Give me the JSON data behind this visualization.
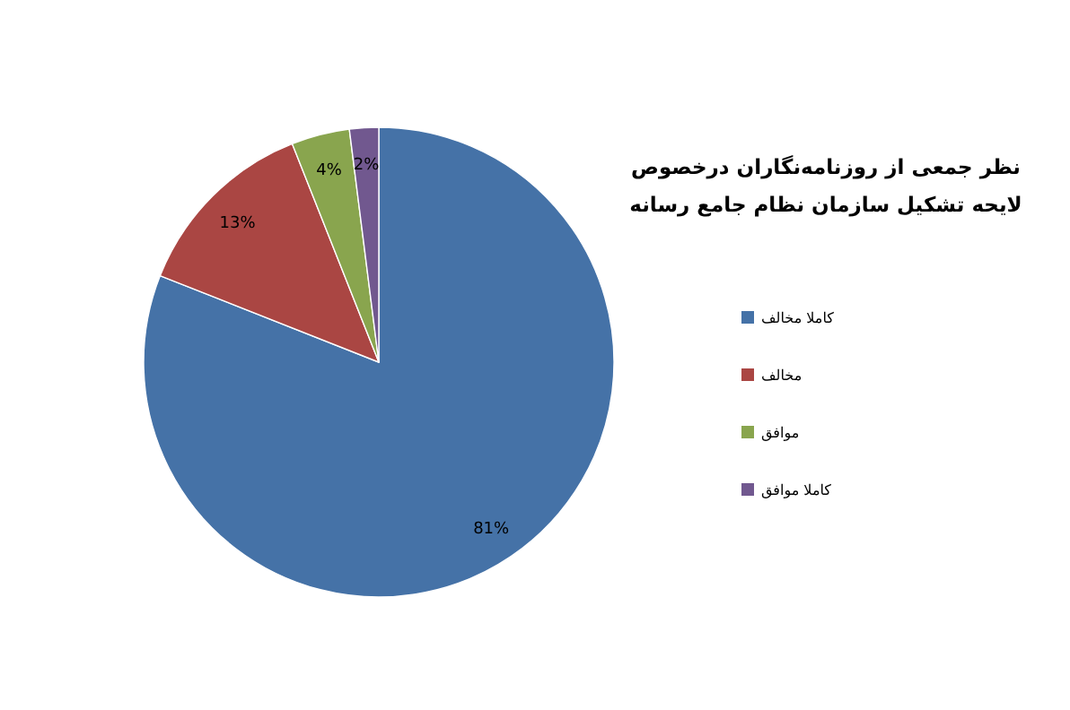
{
  "chart_data": {
    "type": "pie",
    "title": "نظر جمعی از روزنامه‌نگاران درخصوص لایحه تشکیل سازمان نظام جامع رسانه",
    "categories": [
      "کاملا مخالف",
      "مخالف",
      "موافق",
      "کاملا موافق"
    ],
    "values": [
      81,
      13,
      4,
      2
    ],
    "value_labels": [
      "81%",
      "13%",
      "4%",
      "2%"
    ],
    "colors": [
      "#4572a7",
      "#aa4643",
      "#89a54e",
      "#71588f"
    ],
    "legend": "right"
  }
}
